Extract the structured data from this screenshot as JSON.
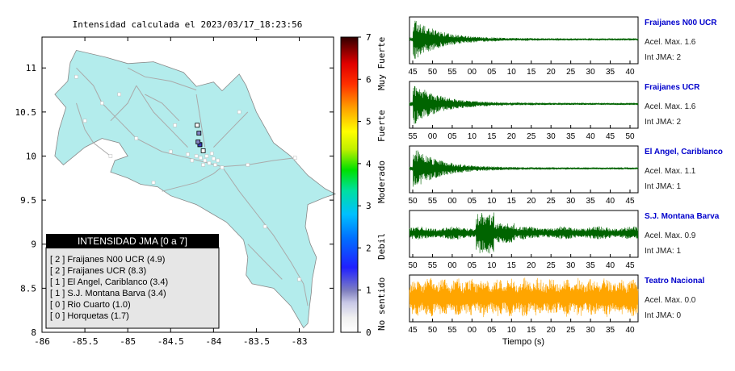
{
  "map": {
    "title": "Intensidad calculada el 2023/03/17_18:23:56",
    "x_ticks": [
      "-86",
      "-85.5",
      "-85",
      "-84.5",
      "-84",
      "-83.5",
      "-83"
    ],
    "x_values": [
      -86,
      -85.5,
      -85,
      -84.5,
      -84,
      -83.5,
      -83
    ],
    "y_ticks": [
      "11",
      "10.5",
      "10",
      "9.5",
      "9",
      "8.5",
      "8"
    ],
    "y_values": [
      11,
      10.5,
      10,
      9.5,
      9,
      8.5,
      8
    ],
    "xlim": [
      -86,
      -82.6
    ],
    "ylim": [
      8,
      11.35
    ],
    "land_color": "#b3ecec",
    "legend": {
      "title": "INTENSIDAD JMA [0 a 7]",
      "items": [
        "[ 2 ]  Fraijanes N00 UCR (4.9)",
        "[ 2 ]  Fraijanes UCR (8.3)",
        "[ 1 ]  El Angel, Cariblanco (3.4)",
        "[ 1 ]  S.J. Montana Barva (3.4)",
        "[ 0 ]  Rio Cuarto (1.0)",
        "[ 0 ]  Horquetas (1.7)"
      ]
    }
  },
  "colorbar": {
    "ticks": [
      "0",
      "1",
      "2",
      "3",
      "4",
      "5",
      "6",
      "7"
    ],
    "labels": [
      "No sentido",
      "Debil",
      "Moderado",
      "Fuerte",
      "Muy Fuerte"
    ]
  },
  "stations": [
    {
      "name": "Fraijanes N00 UCR",
      "acel": "Acel. Max. 1.6",
      "jma": "Int JMA: 2",
      "color": "#006400",
      "ticks": [
        "45",
        "50",
        "55",
        "00",
        "05",
        "10",
        "15",
        "20",
        "25",
        "30",
        "35",
        "40"
      ],
      "envelope": "early"
    },
    {
      "name": "Fraijanes UCR",
      "acel": "Acel. Max. 1.6",
      "jma": "Int JMA: 2",
      "color": "#006400",
      "ticks": [
        "55",
        "00",
        "05",
        "10",
        "15",
        "20",
        "25",
        "30",
        "35",
        "40",
        "45",
        "50"
      ],
      "envelope": "early"
    },
    {
      "name": "El Angel, Cariblanco",
      "acel": "Acel. Max. 1.1",
      "jma": "Int JMA: 1",
      "color": "#006400",
      "ticks": [
        "50",
        "55",
        "00",
        "05",
        "10",
        "15",
        "20",
        "25",
        "30",
        "35",
        "40",
        "45"
      ],
      "envelope": "early"
    },
    {
      "name": "S.J. Montana Barva",
      "acel": "Acel. Max. 0.9",
      "jma": "Int JMA: 1",
      "color": "#006400",
      "ticks": [
        "50",
        "55",
        "00",
        "05",
        "10",
        "15",
        "20",
        "25",
        "30",
        "35",
        "40",
        "45"
      ],
      "envelope": "mid"
    },
    {
      "name": "Teatro Nacional",
      "acel": "Acel. Max. 0.0",
      "jma": "Int JMA: 0",
      "color": "#ffa500",
      "ticks": [
        "45",
        "50",
        "55",
        "00",
        "05",
        "10",
        "15",
        "20",
        "25",
        "30",
        "35",
        "40"
      ],
      "envelope": "noise"
    }
  ],
  "xlabel": "Tiempo (s)",
  "chart_data": {
    "type": "scatter",
    "title": "Intensidad calculada el 2023/03/17_18:23:56",
    "xlabel": "",
    "ylabel": "",
    "xlim": [
      -86,
      -82.6
    ],
    "ylim": [
      8,
      11.35
    ],
    "series": [
      {
        "name": "Fraijanes N00 UCR",
        "x": [
          -84.16
        ],
        "y": [
          10.13
        ]
      },
      {
        "name": "Fraijanes UCR",
        "x": [
          -84.16
        ],
        "y": [
          10.13
        ]
      },
      {
        "name": "El Angel, Cariblanco",
        "x": [
          -84.17
        ],
        "y": [
          10.26
        ]
      },
      {
        "name": "S.J. Montana Barva",
        "x": [
          -84.18
        ],
        "y": [
          10.16
        ]
      },
      {
        "name": "Rio Cuarto",
        "x": [
          -84.19
        ],
        "y": [
          10.35
        ]
      },
      {
        "name": "Horquetas",
        "x": [
          -84.12
        ],
        "y": [
          10.06
        ]
      }
    ]
  }
}
